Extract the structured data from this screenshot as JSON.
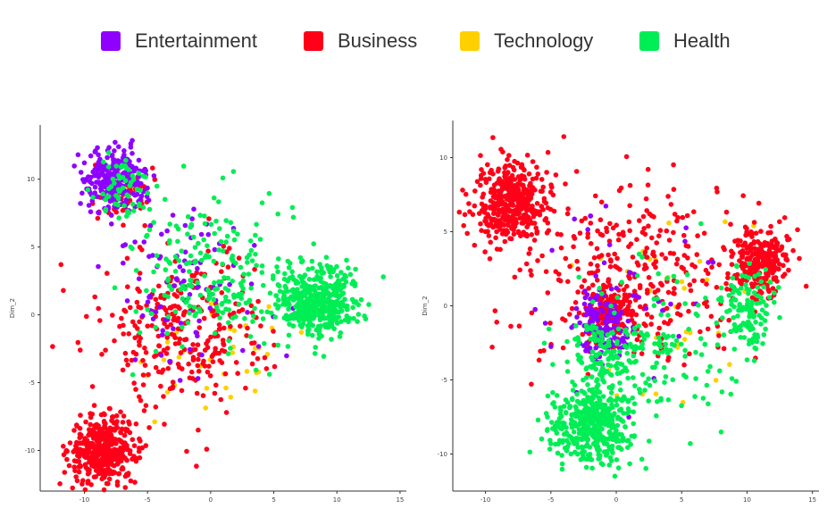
{
  "legend": {
    "items": [
      {
        "label": "Entertainment",
        "color": "#8f00ff"
      },
      {
        "label": "Business",
        "color": "#ff0018"
      },
      {
        "label": "Technology",
        "color": "#ffd000"
      },
      {
        "label": "Health",
        "color": "#00ee55"
      }
    ]
  },
  "chart_data": [
    {
      "type": "scatter",
      "title": "",
      "xlabel": "",
      "ylabel": "Dim_2",
      "xlim": [
        -13.5,
        15.5
      ],
      "ylim": [
        -13,
        14
      ],
      "xticks": [
        -10,
        -5,
        0,
        5,
        10,
        15
      ],
      "yticks": [
        10,
        5,
        0,
        -5,
        -10
      ],
      "grid": false,
      "series": [
        {
          "name": "Entertainment",
          "color": "#8f00ff",
          "clusters": [
            {
              "center": [
                -7.5,
                10
              ],
              "spread": [
                2.2,
                2.0
              ],
              "count": 260
            },
            {
              "center": [
                -2,
                2
              ],
              "spread": [
                6,
                6
              ],
              "count": 90
            }
          ]
        },
        {
          "name": "Business",
          "color": "#ff0018",
          "clusters": [
            {
              "center": [
                -8.5,
                -10
              ],
              "spread": [
                2.4,
                2.2
              ],
              "count": 420
            },
            {
              "center": [
                -7,
                9
              ],
              "spread": [
                2,
                2
              ],
              "count": 60
            },
            {
              "center": [
                -2,
                -1
              ],
              "spread": [
                6,
                5.5
              ],
              "count": 300
            }
          ]
        },
        {
          "name": "Technology",
          "color": "#ffd000",
          "clusters": [
            {
              "center": [
                0,
                -3
              ],
              "spread": [
                7,
                5
              ],
              "count": 40
            }
          ]
        },
        {
          "name": "Health",
          "color": "#00ee55",
          "clusters": [
            {
              "center": [
                8.5,
                1
              ],
              "spread": [
                3.0,
                2.3
              ],
              "count": 420
            },
            {
              "center": [
                -7,
                9.5
              ],
              "spread": [
                2,
                2
              ],
              "count": 60
            },
            {
              "center": [
                0,
                3
              ],
              "spread": [
                6,
                5
              ],
              "count": 220
            }
          ]
        }
      ]
    },
    {
      "type": "scatter",
      "title": "",
      "xlabel": "",
      "ylabel": "Dim_2",
      "xlim": [
        -12.5,
        15.5
      ],
      "ylim": [
        -12.5,
        12.5
      ],
      "xticks": [
        -10,
        -5,
        0,
        5,
        10,
        15
      ],
      "yticks": [
        10,
        5,
        0,
        -5,
        -10
      ],
      "grid": false,
      "series": [
        {
          "name": "Entertainment",
          "color": "#8f00ff",
          "clusters": [
            {
              "center": [
                -1,
                -1.5
              ],
              "spread": [
                1.8,
                2.2
              ],
              "count": 140
            },
            {
              "center": [
                1,
                0
              ],
              "spread": [
                6,
                5
              ],
              "count": 40
            }
          ]
        },
        {
          "name": "Business",
          "color": "#ff0018",
          "clusters": [
            {
              "center": [
                -8,
                7
              ],
              "spread": [
                2.5,
                2.5
              ],
              "count": 420
            },
            {
              "center": [
                11,
                3
              ],
              "spread": [
                2,
                2.2
              ],
              "count": 260
            },
            {
              "center": [
                -0.5,
                -0.5
              ],
              "spread": [
                1.8,
                1.4
              ],
              "count": 150
            },
            {
              "center": [
                1,
                2
              ],
              "spread": [
                7,
                6
              ],
              "count": 300
            }
          ]
        },
        {
          "name": "Technology",
          "color": "#ffd000",
          "clusters": [
            {
              "center": [
                4,
                0
              ],
              "spread": [
                6,
                6
              ],
              "count": 40
            }
          ]
        },
        {
          "name": "Health",
          "color": "#00ee55",
          "clusters": [
            {
              "center": [
                -2,
                -8
              ],
              "spread": [
                2.8,
                2.2
              ],
              "count": 450
            },
            {
              "center": [
                -1,
                -3
              ],
              "spread": [
                2,
                2
              ],
              "count": 80
            },
            {
              "center": [
                10,
                0
              ],
              "spread": [
                2,
                2.5
              ],
              "count": 120
            },
            {
              "center": [
                2,
                -3
              ],
              "spread": [
                6,
                5
              ],
              "count": 180
            }
          ]
        }
      ]
    }
  ]
}
